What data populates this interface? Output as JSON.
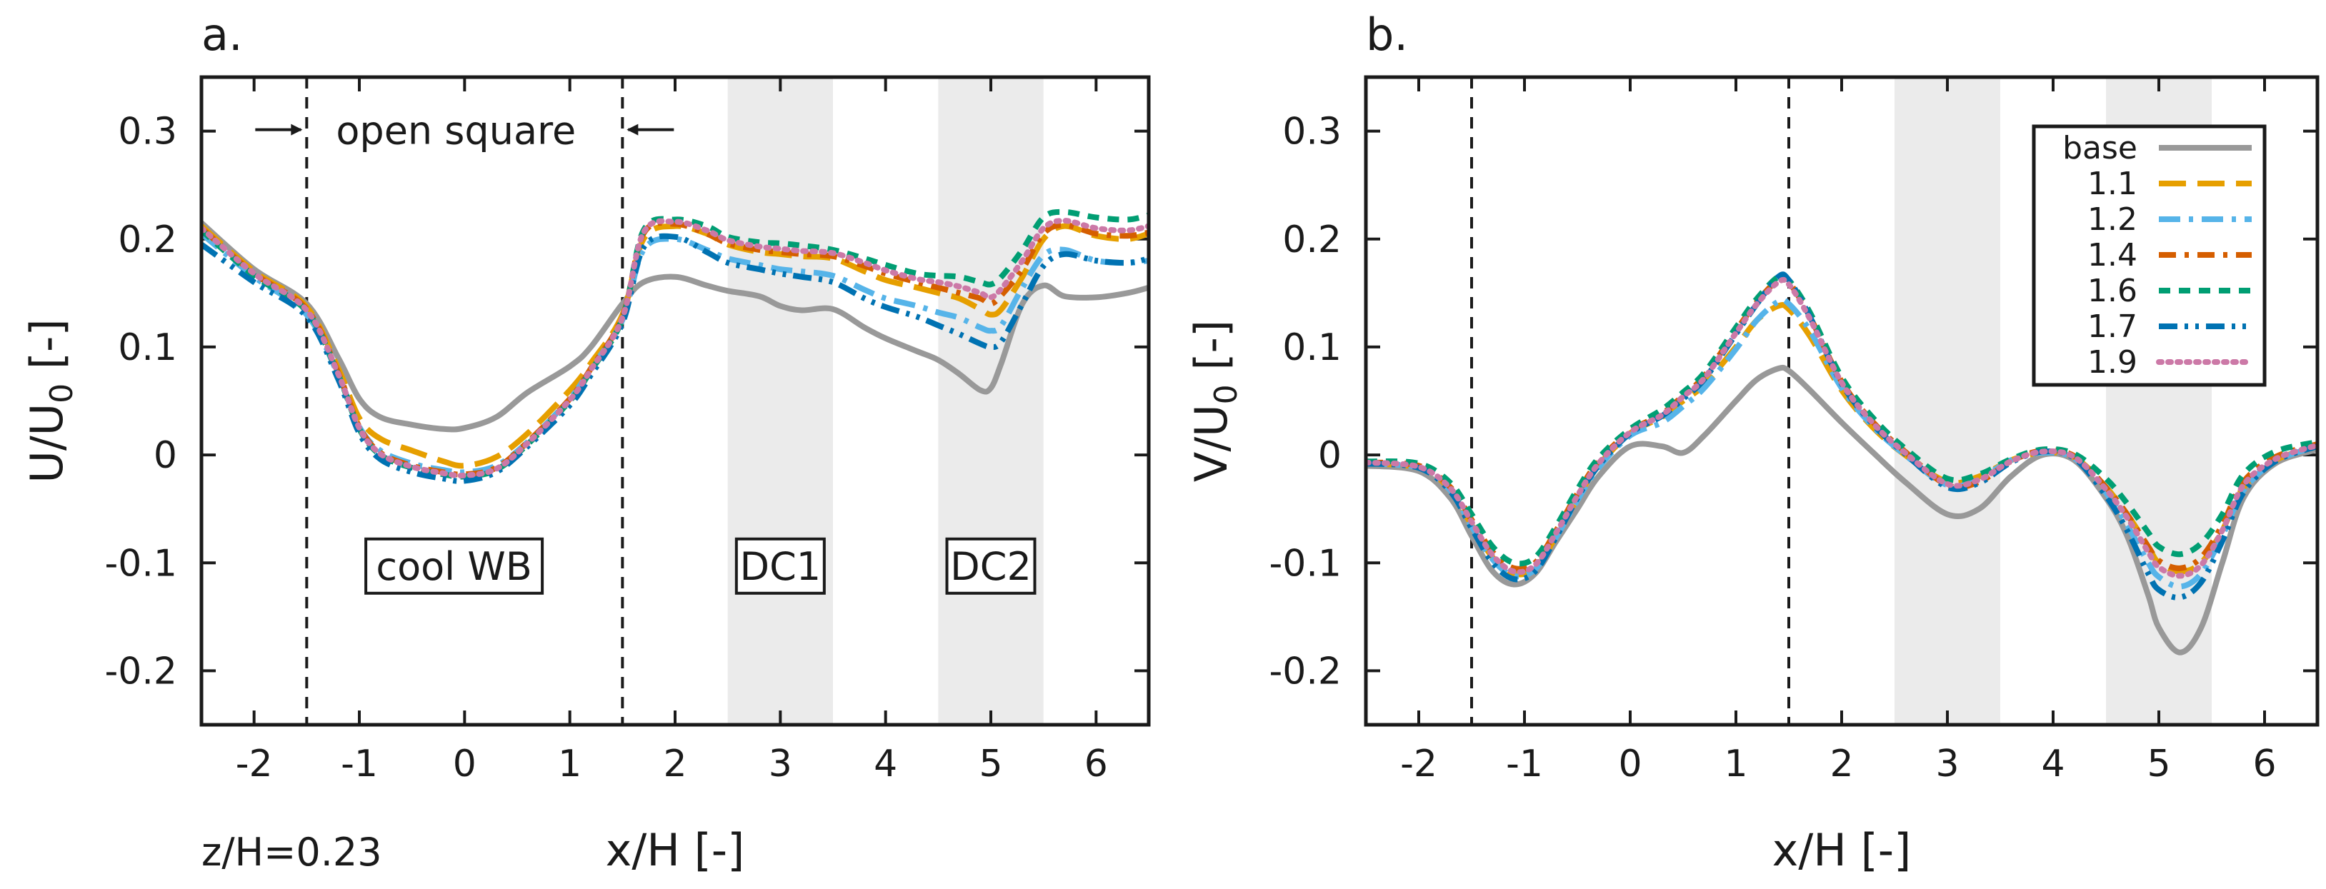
{
  "chart_data": [
    {
      "type": "line",
      "panel": "a.",
      "title": "",
      "xlabel": "x/H [-]",
      "ylabel": "U/U",
      "ylabel_sub": "0",
      "ylabel_tail": " [-]",
      "xlim": [
        -2.5,
        6.5
      ],
      "ylim": [
        -0.25,
        0.35
      ],
      "xticks": [
        -2,
        -1,
        0,
        1,
        2,
        3,
        4,
        5,
        6
      ],
      "xtick_labels": [
        "-2",
        "-1",
        "0",
        "1",
        "2",
        "3",
        "4",
        "5",
        "6"
      ],
      "yticks": [
        -0.2,
        -0.1,
        0,
        0.1,
        0.2,
        0.3
      ],
      "ytick_labels": [
        "-0.2",
        "-0.1",
        "0",
        "0.1",
        "0.2",
        "0.3"
      ],
      "vlines": [
        -1.5,
        1.5
      ],
      "shaded_regions": [
        [
          2.5,
          3.5
        ],
        [
          4.5,
          5.5
        ]
      ],
      "annotation_open_square": "open square",
      "boxes": [
        {
          "label": "cool WB",
          "x": -0.1,
          "y": -0.103
        },
        {
          "label": "DC1",
          "x": 3.0,
          "y": -0.103
        },
        {
          "label": "DC2",
          "x": 5.0,
          "y": -0.103
        }
      ],
      "footnote": "z/H=0.23",
      "x": [
        -2.5,
        -2.0,
        -1.5,
        -1.2,
        -1.0,
        -0.8,
        -0.5,
        -0.2,
        0.0,
        0.3,
        0.6,
        1.0,
        1.2,
        1.5,
        1.7,
        2.0,
        2.3,
        2.5,
        2.8,
        3.0,
        3.2,
        3.5,
        3.8,
        4.0,
        4.3,
        4.5,
        4.7,
        4.9,
        5.0,
        5.1,
        5.3,
        5.5,
        5.7,
        6.0,
        6.3,
        6.5
      ],
      "series": [
        {
          "name": "base",
          "values": [
            0.215,
            0.172,
            0.14,
            0.09,
            0.052,
            0.035,
            0.028,
            0.024,
            0.025,
            0.035,
            0.058,
            0.082,
            0.1,
            0.14,
            0.16,
            0.165,
            0.157,
            0.152,
            0.147,
            0.138,
            0.134,
            0.135,
            0.118,
            0.108,
            0.096,
            0.088,
            0.075,
            0.06,
            0.062,
            0.085,
            0.14,
            0.157,
            0.147,
            0.146,
            0.15,
            0.155
          ]
        },
        {
          "name": "1.1",
          "values": [
            0.212,
            0.17,
            0.137,
            0.08,
            0.034,
            0.015,
            0.004,
            -0.006,
            -0.01,
            -0.002,
            0.02,
            0.06,
            0.085,
            0.13,
            0.2,
            0.212,
            0.205,
            0.195,
            0.188,
            0.186,
            0.184,
            0.182,
            0.17,
            0.162,
            0.155,
            0.15,
            0.145,
            0.135,
            0.13,
            0.135,
            0.165,
            0.2,
            0.212,
            0.203,
            0.2,
            0.205
          ]
        },
        {
          "name": "1.2",
          "values": [
            0.205,
            0.165,
            0.13,
            0.074,
            0.026,
            0.004,
            -0.008,
            -0.014,
            -0.016,
            -0.01,
            0.012,
            0.052,
            0.08,
            0.125,
            0.19,
            0.2,
            0.19,
            0.182,
            0.176,
            0.172,
            0.17,
            0.166,
            0.153,
            0.145,
            0.138,
            0.132,
            0.127,
            0.118,
            0.115,
            0.12,
            0.155,
            0.185,
            0.19,
            0.18,
            0.178,
            0.18
          ]
        },
        {
          "name": "1.4",
          "values": [
            0.21,
            0.168,
            0.135,
            0.076,
            0.026,
            0.002,
            -0.01,
            -0.016,
            -0.018,
            -0.012,
            0.012,
            0.052,
            0.08,
            0.128,
            0.205,
            0.214,
            0.205,
            0.196,
            0.19,
            0.188,
            0.186,
            0.184,
            0.175,
            0.168,
            0.16,
            0.155,
            0.15,
            0.145,
            0.14,
            0.148,
            0.172,
            0.205,
            0.213,
            0.205,
            0.203,
            0.206
          ]
        },
        {
          "name": "1.6",
          "values": [
            0.208,
            0.166,
            0.133,
            0.074,
            0.024,
            0.0,
            -0.012,
            -0.018,
            -0.02,
            -0.014,
            0.01,
            0.05,
            0.078,
            0.126,
            0.208,
            0.218,
            0.212,
            0.202,
            0.197,
            0.196,
            0.194,
            0.19,
            0.182,
            0.176,
            0.168,
            0.166,
            0.165,
            0.16,
            0.158,
            0.165,
            0.19,
            0.22,
            0.225,
            0.22,
            0.218,
            0.222
          ]
        },
        {
          "name": "1.7",
          "values": [
            0.195,
            0.16,
            0.128,
            0.07,
            0.02,
            -0.004,
            -0.016,
            -0.022,
            -0.024,
            -0.016,
            0.008,
            0.046,
            0.074,
            0.122,
            0.192,
            0.202,
            0.188,
            0.178,
            0.172,
            0.168,
            0.165,
            0.16,
            0.145,
            0.137,
            0.128,
            0.12,
            0.112,
            0.103,
            0.1,
            0.105,
            0.14,
            0.175,
            0.186,
            0.18,
            0.178,
            0.182
          ]
        },
        {
          "name": "1.9",
          "values": [
            0.21,
            0.168,
            0.134,
            0.075,
            0.025,
            0.001,
            -0.011,
            -0.017,
            -0.019,
            -0.013,
            0.011,
            0.051,
            0.079,
            0.127,
            0.206,
            0.216,
            0.208,
            0.199,
            0.193,
            0.191,
            0.189,
            0.187,
            0.178,
            0.171,
            0.163,
            0.16,
            0.156,
            0.15,
            0.146,
            0.154,
            0.18,
            0.21,
            0.217,
            0.21,
            0.208,
            0.212
          ]
        }
      ]
    },
    {
      "type": "line",
      "panel": "b.",
      "title": "",
      "xlabel": "x/H [-]",
      "ylabel": "V/U",
      "ylabel_sub": "0",
      "ylabel_tail": " [-]",
      "xlim": [
        -2.5,
        6.5
      ],
      "ylim": [
        -0.25,
        0.35
      ],
      "xticks": [
        -2,
        -1,
        0,
        1,
        2,
        3,
        4,
        5,
        6
      ],
      "xtick_labels": [
        "-2",
        "-1",
        "0",
        "1",
        "2",
        "3",
        "4",
        "5",
        "6"
      ],
      "yticks": [
        -0.2,
        -0.1,
        0,
        0.1,
        0.2,
        0.3
      ],
      "ytick_labels": [
        "-0.2",
        "-0.1",
        "0",
        "0.1",
        "0.2",
        "0.3"
      ],
      "vlines": [
        -1.5,
        1.5
      ],
      "shaded_regions": [
        [
          2.5,
          3.5
        ],
        [
          4.5,
          5.5
        ]
      ],
      "legend": {
        "placement": "top-right",
        "entries": [
          "base",
          "1.1",
          "1.2",
          "1.4",
          "1.6",
          "1.7",
          "1.9"
        ]
      },
      "x": [
        -2.5,
        -2.0,
        -1.7,
        -1.5,
        -1.3,
        -1.1,
        -0.9,
        -0.7,
        -0.5,
        -0.3,
        0.0,
        0.3,
        0.5,
        0.7,
        1.0,
        1.2,
        1.4,
        1.5,
        1.7,
        2.0,
        2.3,
        2.6,
        3.0,
        3.3,
        3.6,
        3.9,
        4.2,
        4.5,
        4.7,
        4.9,
        5.0,
        5.2,
        5.4,
        5.6,
        5.8,
        6.1,
        6.5
      ],
      "series": [
        {
          "name": "base",
          "values": [
            -0.01,
            -0.015,
            -0.04,
            -0.075,
            -0.108,
            -0.12,
            -0.11,
            -0.08,
            -0.05,
            -0.02,
            0.008,
            0.008,
            0.002,
            0.018,
            0.05,
            0.07,
            0.08,
            0.078,
            0.06,
            0.03,
            0.002,
            -0.025,
            -0.055,
            -0.05,
            -0.02,
            0.0,
            -0.005,
            -0.04,
            -0.075,
            -0.13,
            -0.16,
            -0.183,
            -0.16,
            -0.1,
            -0.04,
            -0.008,
            0.005
          ]
        },
        {
          "name": "1.1",
          "values": [
            -0.008,
            -0.012,
            -0.032,
            -0.065,
            -0.095,
            -0.11,
            -0.105,
            -0.075,
            -0.04,
            -0.01,
            0.02,
            0.035,
            0.05,
            0.065,
            0.1,
            0.125,
            0.138,
            0.135,
            0.11,
            0.06,
            0.025,
            0.0,
            -0.025,
            -0.02,
            -0.005,
            0.002,
            -0.002,
            -0.03,
            -0.055,
            -0.085,
            -0.1,
            -0.108,
            -0.1,
            -0.07,
            -0.03,
            -0.005,
            0.008
          ]
        },
        {
          "name": "1.2",
          "values": [
            -0.008,
            -0.012,
            -0.033,
            -0.066,
            -0.097,
            -0.112,
            -0.106,
            -0.076,
            -0.042,
            -0.012,
            0.018,
            0.03,
            0.045,
            0.062,
            0.098,
            0.125,
            0.142,
            0.14,
            0.115,
            0.062,
            0.026,
            0.0,
            -0.028,
            -0.022,
            -0.005,
            0.002,
            -0.003,
            -0.035,
            -0.065,
            -0.1,
            -0.113,
            -0.122,
            -0.11,
            -0.075,
            -0.033,
            -0.006,
            0.008
          ]
        },
        {
          "name": "1.4",
          "values": [
            -0.007,
            -0.01,
            -0.03,
            -0.06,
            -0.09,
            -0.105,
            -0.1,
            -0.07,
            -0.036,
            -0.006,
            0.022,
            0.038,
            0.055,
            0.073,
            0.115,
            0.142,
            0.162,
            0.16,
            0.128,
            0.068,
            0.03,
            0.003,
            -0.028,
            -0.025,
            -0.006,
            0.004,
            -0.001,
            -0.03,
            -0.055,
            -0.085,
            -0.098,
            -0.105,
            -0.095,
            -0.065,
            -0.025,
            -0.002,
            0.01
          ]
        },
        {
          "name": "1.6",
          "values": [
            -0.006,
            -0.008,
            -0.026,
            -0.055,
            -0.085,
            -0.1,
            -0.095,
            -0.066,
            -0.032,
            -0.003,
            0.024,
            0.042,
            0.058,
            0.076,
            0.118,
            0.145,
            0.165,
            0.162,
            0.132,
            0.072,
            0.034,
            0.006,
            -0.022,
            -0.018,
            -0.004,
            0.005,
            0.001,
            -0.022,
            -0.045,
            -0.072,
            -0.085,
            -0.092,
            -0.082,
            -0.055,
            -0.018,
            0.003,
            0.012
          ]
        },
        {
          "name": "1.7",
          "values": [
            -0.008,
            -0.012,
            -0.034,
            -0.068,
            -0.1,
            -0.115,
            -0.108,
            -0.076,
            -0.04,
            -0.01,
            0.02,
            0.036,
            0.052,
            0.07,
            0.112,
            0.14,
            0.165,
            0.162,
            0.128,
            0.066,
            0.028,
            0.001,
            -0.03,
            -0.026,
            -0.007,
            0.003,
            -0.003,
            -0.038,
            -0.07,
            -0.11,
            -0.125,
            -0.132,
            -0.118,
            -0.08,
            -0.035,
            -0.006,
            0.008
          ]
        },
        {
          "name": "1.9",
          "values": [
            -0.007,
            -0.011,
            -0.031,
            -0.062,
            -0.093,
            -0.108,
            -0.102,
            -0.072,
            -0.038,
            -0.008,
            0.021,
            0.037,
            0.054,
            0.071,
            0.113,
            0.14,
            0.16,
            0.158,
            0.126,
            0.067,
            0.029,
            0.002,
            -0.027,
            -0.023,
            -0.006,
            0.003,
            -0.002,
            -0.032,
            -0.058,
            -0.09,
            -0.104,
            -0.112,
            -0.102,
            -0.07,
            -0.028,
            -0.004,
            0.009
          ]
        }
      ]
    }
  ],
  "styles": {
    "series": [
      {
        "color": "#999999",
        "dash": "",
        "width": 8
      },
      {
        "color": "#e69f00",
        "dash": "38 16",
        "width": 8
      },
      {
        "color": "#56b4e9",
        "dash": "30 12 6 12",
        "width": 8
      },
      {
        "color": "#d55e00",
        "dash": "24 12 6 12",
        "width": 8
      },
      {
        "color": "#009e73",
        "dash": "16 12",
        "width": 8
      },
      {
        "color": "#0072b2",
        "dash": "26 10 5 10 5 10",
        "width": 8
      },
      {
        "color": "#cc79a7",
        "dash": "4 9",
        "width": 8
      }
    ],
    "shade": "#ebebeb",
    "ink": "#1a1a1a"
  }
}
